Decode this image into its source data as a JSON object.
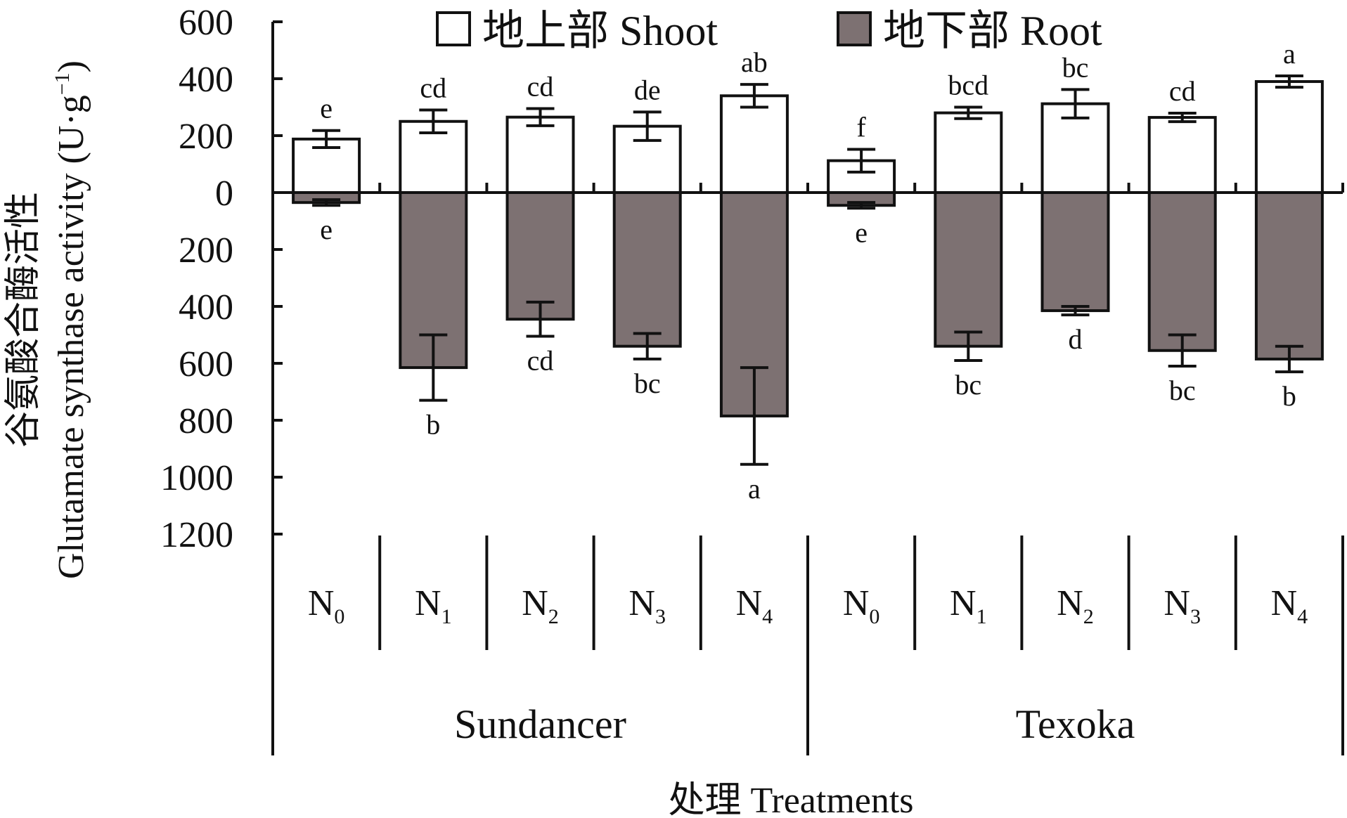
{
  "chart_data": {
    "type": "bar",
    "legend": {
      "placement": "top-center",
      "items": [
        {
          "key": "shoot",
          "label": "地上部 Shoot",
          "color": "#ffffff"
        },
        {
          "key": "root",
          "label": "地下部 Root",
          "color": "#7d7172"
        }
      ]
    },
    "ylabel_cn": "谷氨酸合酶活性",
    "ylabel_en": "Glutamate synthase activity (U·g",
    "ylabel_unit_sup": "−1",
    "ylabel_close": ")",
    "xlabel": "处理 Treatments",
    "y_ticks": [
      {
        "value": 600,
        "label": "600"
      },
      {
        "value": 400,
        "label": "400"
      },
      {
        "value": 200,
        "label": "200"
      },
      {
        "value": 0,
        "label": "0"
      },
      {
        "value": -200,
        "label": "200"
      },
      {
        "value": -400,
        "label": "400"
      },
      {
        "value": -600,
        "label": "600"
      },
      {
        "value": -800,
        "label": "800"
      },
      {
        "value": -1000,
        "label": "1000"
      },
      {
        "value": -1200,
        "label": "1200"
      }
    ],
    "ylim": [
      -1200,
      600
    ],
    "grid": false,
    "groups": [
      {
        "name": "Sundancer",
        "categories": [
          "N0",
          "N1",
          "N2",
          "N3",
          "N4"
        ]
      },
      {
        "name": "Texoka",
        "categories": [
          "N0",
          "N1",
          "N2",
          "N3",
          "N4"
        ]
      }
    ],
    "series": [
      {
        "name": "地上部 Shoot",
        "values": [
          188,
          250,
          265,
          233,
          340,
          112,
          280,
          312,
          264,
          390
        ],
        "errors": [
          30,
          40,
          30,
          50,
          40,
          40,
          20,
          50,
          15,
          20
        ],
        "letters": [
          "e",
          "cd",
          "cd",
          "de",
          "ab",
          "f",
          "bcd",
          "bc",
          "cd",
          "a"
        ]
      },
      {
        "name": "地下部 Root",
        "values": [
          -35,
          -615,
          -445,
          -540,
          -785,
          -45,
          -540,
          -415,
          -555,
          -585
        ],
        "errors": [
          10,
          115,
          60,
          45,
          170,
          10,
          50,
          15,
          55,
          45
        ],
        "letters": [
          "e",
          "b",
          "cd",
          "bc",
          "a",
          "e",
          "bc",
          "d",
          "bc",
          "b"
        ]
      }
    ]
  }
}
